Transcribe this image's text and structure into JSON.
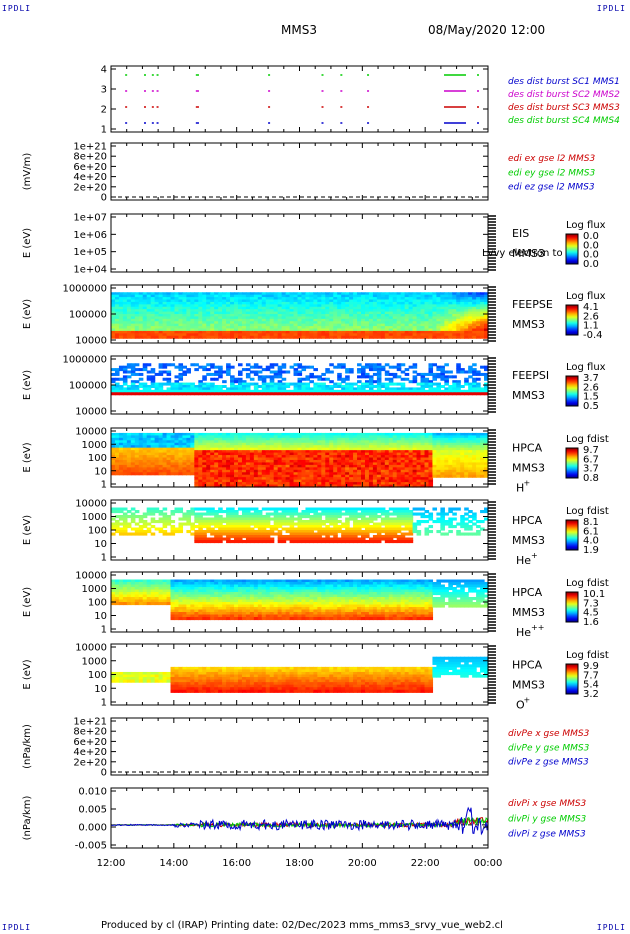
{
  "corner_tl": "IPDLI",
  "corner_tr": "IPDLI",
  "corner_bl": "IPDLI",
  "corner_br": "IPDLI",
  "header": {
    "spacecraft": "MMS3",
    "date": "08/May/2020 12:00"
  },
  "footer": {
    "text": "Produced by cl (IRAP)   Printing date: 02/Dec/2023   mms_mms3_srvy_vue_web2.cl"
  },
  "colors": {
    "red": "#cc0000",
    "green": "#00cc00",
    "blue": "#0000cc",
    "magenta": "#cc00cc"
  },
  "chart_data": [
    {
      "type": "scatter",
      "id": "burst",
      "x_ticks": [
        "12:00",
        "14:00",
        "16:00",
        "18:00",
        "20:00",
        "22:00",
        "00:00"
      ],
      "y_ticks": [
        "4",
        "3",
        "2",
        "1"
      ],
      "ylim": [
        0.5,
        4.5
      ],
      "legend": [
        {
          "text": "des dist burst SC1 MMS1",
          "color": "#0000cc"
        },
        {
          "text": "des dist burst SC2 MMS2",
          "color": "#cc00cc"
        },
        {
          "text": "des dist burst SC3 MMS3",
          "color": "#cc0000"
        },
        {
          "text": "des dist burst SC4 MMS4",
          "color": "#00cc00"
        }
      ],
      "burst_intervals_hours": [
        [
          12.45,
          12.5
        ],
        [
          13.05,
          13.1
        ],
        [
          13.3,
          13.35
        ],
        [
          13.45,
          13.5
        ],
        [
          14.7,
          14.8
        ],
        [
          17.0,
          17.05
        ],
        [
          18.7,
          18.75
        ],
        [
          19.3,
          19.35
        ],
        [
          20.15,
          20.2
        ],
        [
          22.6,
          23.3
        ],
        [
          23.65,
          23.7
        ]
      ]
    },
    {
      "type": "line",
      "id": "edi",
      "ylabel": "(mV/m)",
      "y_ticks": [
        "1e+21",
        "8e+20",
        "6e+20",
        "4e+20",
        "2e+20",
        "0"
      ],
      "legend": [
        {
          "text": "edi ex gse l2 MMS3",
          "color": "#cc0000"
        },
        {
          "text": "edi ey gse l2 MMS3",
          "color": "#00cc00"
        },
        {
          "text": "edi ez gse l2 MMS3",
          "color": "#0000cc"
        }
      ]
    },
    {
      "type": "heatmap",
      "id": "eis",
      "ylabel": "E (eV)",
      "y_ticks": [
        "1e+07",
        "1e+06",
        "1e+05",
        "1e+04"
      ],
      "label_lines": [
        "EIS",
        "MMS3"
      ],
      "overlay_text": "Lvvy electron to",
      "colorbar": {
        "title": "Log flux",
        "ticks": [
          "0.0",
          "0.0",
          "0.0",
          "0.0"
        ]
      }
    },
    {
      "type": "heatmap",
      "id": "feepse",
      "ylabel": "E (eV)",
      "y_ticks": [
        "1000000",
        "100000",
        "10000"
      ],
      "label_lines": [
        "FEEPSE",
        "MMS3"
      ],
      "colorbar": {
        "title": "Log flux",
        "ticks": [
          "4.1",
          "2.6",
          "1.1",
          "-0.4"
        ]
      }
    },
    {
      "type": "heatmap",
      "id": "feepsi",
      "ylabel": "E (eV)",
      "y_ticks": [
        "1000000",
        "100000",
        "10000"
      ],
      "label_lines": [
        "FEEPSI",
        "MMS3"
      ],
      "colorbar": {
        "title": "Log flux",
        "ticks": [
          "3.7",
          "2.6",
          "1.5",
          "0.5"
        ]
      }
    },
    {
      "type": "heatmap",
      "id": "hpca_h",
      "ylabel": "E (eV)",
      "y_ticks": [
        "10000",
        "1000",
        "100",
        "10",
        "1"
      ],
      "label_lines": [
        "HPCA",
        "MMS3"
      ],
      "species": "H",
      "charge": "+",
      "colorbar": {
        "title": "Log fdist",
        "ticks": [
          "9.7",
          "6.7",
          "3.7",
          "0.8"
        ]
      }
    },
    {
      "type": "heatmap",
      "id": "hpca_he",
      "ylabel": "E (eV)",
      "y_ticks": [
        "10000",
        "1000",
        "100",
        "10",
        "1"
      ],
      "label_lines": [
        "HPCA",
        "MMS3"
      ],
      "species": "He",
      "charge": "+",
      "colorbar": {
        "title": "Log fdist",
        "ticks": [
          "8.1",
          "6.1",
          "4.0",
          "1.9"
        ]
      }
    },
    {
      "type": "heatmap",
      "id": "hpca_hepp",
      "ylabel": "E (eV)",
      "y_ticks": [
        "10000",
        "1000",
        "100",
        "10",
        "1"
      ],
      "label_lines": [
        "HPCA",
        "MMS3"
      ],
      "species": "He",
      "charge": "++",
      "colorbar": {
        "title": "Log fdist",
        "ticks": [
          "10.1",
          "7.3",
          "4.5",
          "1.6"
        ]
      }
    },
    {
      "type": "heatmap",
      "id": "hpca_o",
      "ylabel": "E (eV)",
      "y_ticks": [
        "10000",
        "1000",
        "100",
        "10",
        "1"
      ],
      "label_lines": [
        "HPCA",
        "MMS3"
      ],
      "species": "O",
      "charge": "+",
      "colorbar": {
        "title": "Log fdist",
        "ticks": [
          "9.9",
          "7.7",
          "5.4",
          "3.2"
        ]
      }
    },
    {
      "type": "line",
      "id": "divpe",
      "ylabel": "(nPa/km)",
      "y_ticks": [
        "1e+21",
        "8e+20",
        "6e+20",
        "4e+20",
        "2e+20",
        "0"
      ],
      "legend": [
        {
          "text": "divPe x gse MMS3",
          "color": "#cc0000"
        },
        {
          "text": "divPe y gse MMS3",
          "color": "#00cc00"
        },
        {
          "text": "divPe z gse MMS3",
          "color": "#0000cc"
        }
      ]
    },
    {
      "type": "line",
      "id": "divpi",
      "ylabel": "(nPa/km)",
      "y_ticks": [
        "0.010",
        "0.005",
        "0.000",
        "-0.005"
      ],
      "ylim": [
        -0.0075,
        0.012
      ],
      "x_ticks": [
        "12:00",
        "14:00",
        "16:00",
        "18:00",
        "20:00",
        "22:00",
        "00:00"
      ],
      "legend": [
        {
          "text": "divPi x gse MMS3",
          "color": "#cc0000"
        },
        {
          "text": "divPi y gse MMS3",
          "color": "#00cc00"
        },
        {
          "text": "divPi z gse MMS3",
          "color": "#0000cc"
        }
      ]
    }
  ]
}
